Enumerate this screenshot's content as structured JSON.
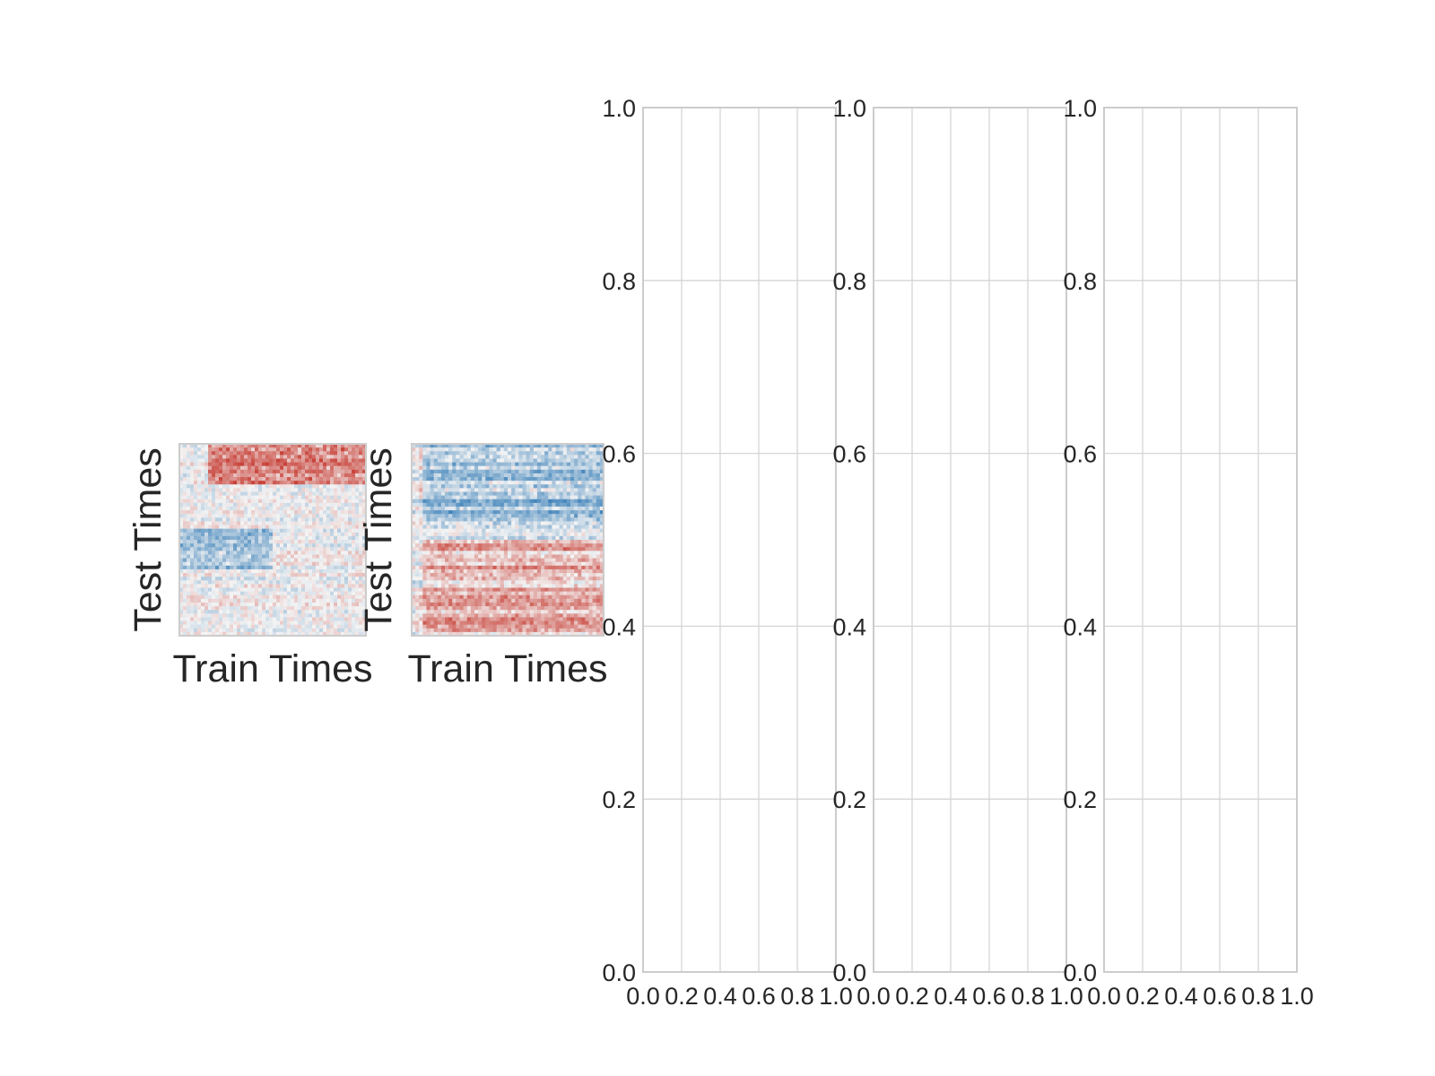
{
  "chart_data": [
    {
      "type": "heatmap",
      "xlabel": "Train Times",
      "ylabel": "Test Times",
      "colormap": "red-blue diverging",
      "pattern": [
        {
          "y": [
            0.78,
            1.0
          ],
          "x": [
            0.15,
            1.0
          ],
          "sign": 1,
          "strength": 0.75
        },
        {
          "y": [
            0.35,
            0.55
          ],
          "x": [
            0.0,
            0.5
          ],
          "sign": -1,
          "strength": 0.45
        }
      ]
    },
    {
      "type": "heatmap",
      "xlabel": "Train Times",
      "ylabel": "Test Times",
      "colormap": "red-blue diverging",
      "pattern": [
        {
          "y": [
            0.55,
            1.0
          ],
          "x": [
            0.05,
            1.0
          ],
          "sign": -1,
          "strength": 0.45
        },
        {
          "y": [
            0.0,
            0.5
          ],
          "x": [
            0.05,
            1.0
          ],
          "sign": 1,
          "strength": 0.4
        }
      ]
    },
    {
      "type": "line",
      "series": [],
      "xlim": [
        0.0,
        1.0
      ],
      "ylim": [
        0.0,
        1.0
      ],
      "xticks": [
        "0.0",
        "0.2",
        "0.4",
        "0.6",
        "0.8",
        "1.0"
      ],
      "yticks": [
        "0.0",
        "0.2",
        "0.4",
        "0.6",
        "0.8",
        "1.0"
      ],
      "grid": true
    },
    {
      "type": "line",
      "series": [],
      "xlim": [
        0.0,
        1.0
      ],
      "ylim": [
        0.0,
        1.0
      ],
      "xticks": [
        "0.0",
        "0.2",
        "0.4",
        "0.6",
        "0.8",
        "1.0"
      ],
      "yticks": [
        "0.0",
        "0.2",
        "0.4",
        "0.6",
        "0.8",
        "1.0"
      ],
      "grid": true
    },
    {
      "type": "line",
      "series": [],
      "xlim": [
        0.0,
        1.0
      ],
      "ylim": [
        0.0,
        1.0
      ],
      "xticks": [
        "0.0",
        "0.2",
        "0.4",
        "0.6",
        "0.8",
        "1.0"
      ],
      "yticks": [
        "0.0",
        "0.2",
        "0.4",
        "0.6",
        "0.8",
        "1.0"
      ],
      "grid": true
    }
  ],
  "colors": {
    "positive": "#c8433a",
    "negative": "#2f79b5",
    "neutral": "#f4f4f4",
    "grid": "#d5d5d5",
    "frame": "#cccccc",
    "text": "#262626"
  }
}
